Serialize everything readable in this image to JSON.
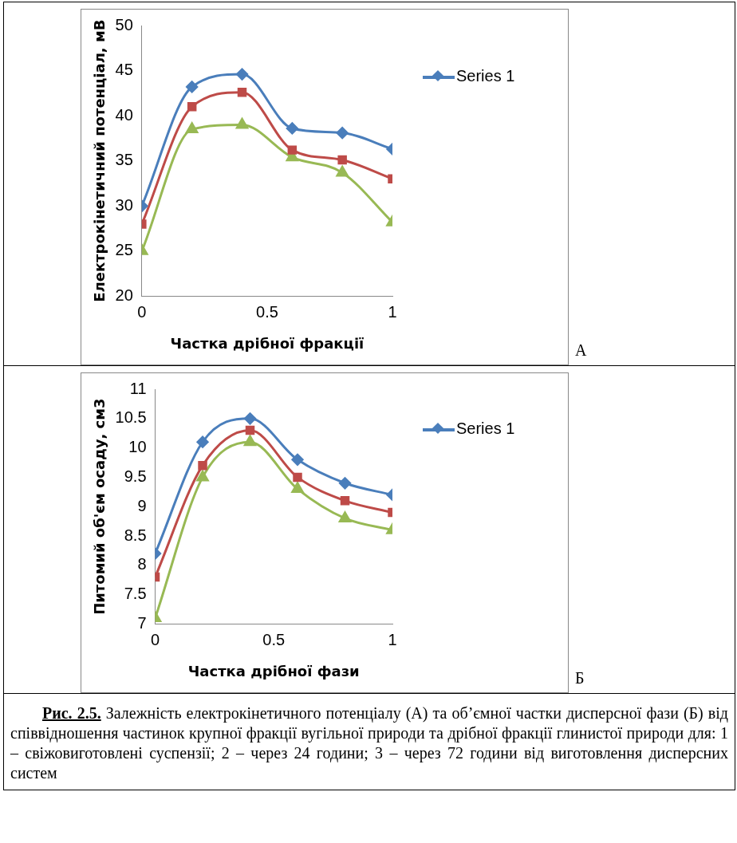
{
  "chart_data": [
    {
      "type": "line",
      "xlabel": "Частка дрібної фракції",
      "ylabel": "Електрокінетичний потенціал, мВ",
      "x": [
        0,
        0.2,
        0.4,
        0.6,
        0.8,
        1
      ],
      "xlim": [
        0,
        1
      ],
      "xticks": [
        0,
        0.5,
        1
      ],
      "ylim": [
        20,
        50
      ],
      "yticks": [
        20,
        25,
        30,
        35,
        40,
        45,
        50
      ],
      "grid": false,
      "legend": "right",
      "line_style": "solid",
      "annotations": [
        "А"
      ],
      "series": [
        {
          "name": "Series 1",
          "color": "#4a7ebb",
          "marker": "diamond",
          "values": [
            30,
            43.2,
            44.6,
            38.6,
            38.1,
            36.3
          ]
        },
        {
          "color": "#be4b48",
          "marker": "square",
          "values": [
            28,
            41,
            42.6,
            36.2,
            35.1,
            33
          ]
        },
        {
          "color": "#98b954",
          "marker": "triangle",
          "values": [
            25,
            38.5,
            39,
            35.4,
            33.7,
            28.2
          ]
        }
      ]
    },
    {
      "type": "line",
      "xlabel": "Частка дрібної фази",
      "ylabel": "Питомий об'єм осаду, см3",
      "x": [
        0,
        0.2,
        0.4,
        0.6,
        0.8,
        1
      ],
      "xlim": [
        0,
        1
      ],
      "xticks": [
        0,
        0.5,
        1
      ],
      "ylim": [
        7,
        11
      ],
      "yticks": [
        7,
        7.5,
        8,
        8.5,
        9,
        9.5,
        10,
        10.5,
        11
      ],
      "grid": false,
      "legend": "right",
      "line_style": "solid",
      "annotations": [
        "Б",
        "Рис. 2.5.",
        "Залежність електрокінетичного потенціалу (А) та об’ємної частки  дисперсної фази (Б) від співвідношення частинок крупної фракції вугільної природи та дрібної фракції глинистої природи для: 1 – свіжовиготовлені суспензії; 2 – через 24 години; 3 – через 72 години від виготовлення дисперсних систем"
      ],
      "series": [
        {
          "name": "Series 1",
          "color": "#4a7ebb",
          "marker": "diamond",
          "values": [
            8.2,
            10.1,
            10.5,
            9.8,
            9.4,
            9.2
          ]
        },
        {
          "color": "#be4b48",
          "marker": "square",
          "values": [
            7.8,
            9.7,
            10.3,
            9.5,
            9.1,
            8.9
          ]
        },
        {
          "color": "#98b954",
          "marker": "triangle",
          "values": [
            7.1,
            9.5,
            10.1,
            9.3,
            8.8,
            8.6
          ]
        }
      ]
    }
  ]
}
